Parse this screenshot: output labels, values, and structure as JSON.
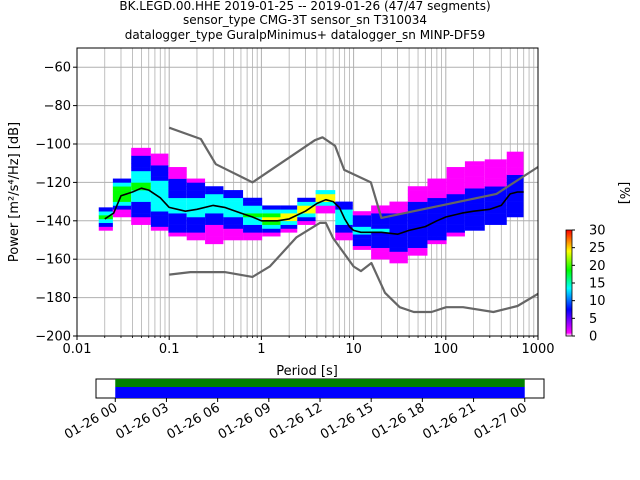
{
  "title_lines": [
    "BK.LEGD.00.HHE   2019-01-25 -- 2019-01-26  (47/47 segments)",
    "sensor_type CMG-3T sensor_sn T310034",
    "datalogger_type GuralpMinimus+ datalogger_sn MINP-DF59"
  ],
  "colors": {
    "background": "#ffffff",
    "grid": "#b0b0b0",
    "model_line": "#666666",
    "mode_line": "#000000",
    "coverage_green": "#008000",
    "coverage_blue": "#0000ff"
  },
  "chart_data": {
    "type": "heatmap",
    "title": "BK.LEGD.00.HHE   2019-01-25 -- 2019-01-26  (47/47 segments)",
    "xlabel": "Period [s]",
    "ylabel": "Power [m²/s⁴/Hz] [dB]",
    "xscale": "log",
    "xlim": [
      0.01,
      1000
    ],
    "ylim": [
      -200,
      -50
    ],
    "x_tick_labels": [
      "0.01",
      "0.1",
      "1",
      "10",
      "100",
      "1000"
    ],
    "x_ticks": [
      0.01,
      0.1,
      1,
      10,
      100,
      1000
    ],
    "y_ticks": [
      -200,
      -180,
      -160,
      -140,
      -120,
      -100,
      -80,
      -60
    ],
    "y_tick_labels": [
      "−200",
      "−180",
      "−160",
      "−140",
      "−120",
      "−100",
      "−80",
      "−60"
    ],
    "grid": true,
    "colorbar": {
      "label": "[%]",
      "range": [
        0,
        30
      ],
      "ticks": [
        0,
        5,
        10,
        15,
        20,
        25,
        30
      ],
      "tick_labels": [
        "0",
        "5",
        "10",
        "15",
        "20",
        "25",
        "30"
      ],
      "colormap": [
        "#ff00ff",
        "#0000ff",
        "#00ffff",
        "#00ff00",
        "#ffff00",
        "#ff0000"
      ]
    },
    "series": [
      {
        "name": "",
        "role": "new-high-noise-model",
        "x": [
          0.1,
          0.22,
          0.32,
          0.8,
          3.8,
          4.6,
          6.3,
          7.9,
          15.4,
          20,
          354.8,
          1000
        ],
        "y": [
          -91.5,
          -97.4,
          -110.5,
          -120,
          -98,
          -96.5,
          -101,
          -113.5,
          -120,
          -138.5,
          -126,
          -112
        ]
      },
      {
        "name": "",
        "role": "new-low-noise-model",
        "x": [
          0.1,
          0.17,
          0.4,
          0.8,
          1.24,
          2.4,
          4.3,
          5,
          6,
          10,
          12,
          15.6,
          21.9,
          31.6,
          45,
          70,
          101,
          154,
          328,
          600,
          1000
        ],
        "y": [
          -168,
          -166.7,
          -166.7,
          -169.2,
          -163.7,
          -148.6,
          -141.1,
          -141.1,
          -149,
          -163.8,
          -166.2,
          -162,
          -177.5,
          -185,
          -187.5,
          -187.5,
          -185,
          -185,
          -187.5,
          -184.4,
          -178
        ]
      },
      {
        "name": "",
        "role": "mode",
        "x": [
          0.02,
          0.025,
          0.03,
          0.04,
          0.05,
          0.06,
          0.08,
          0.1,
          0.15,
          0.2,
          0.3,
          0.4,
          0.6,
          0.8,
          1,
          1.5,
          2,
          3,
          4,
          5,
          6,
          7,
          8,
          9,
          10,
          12,
          15,
          20,
          30,
          40,
          60,
          80,
          100,
          150,
          200,
          300,
          400,
          500,
          600,
          700
        ],
        "y": [
          -139,
          -136,
          -127,
          -125,
          -123,
          -124,
          -128,
          -133,
          -135,
          -134,
          -132,
          -133,
          -136,
          -138,
          -140,
          -140,
          -139,
          -135,
          -131,
          -129,
          -130,
          -133,
          -139,
          -143,
          -145,
          -146,
          -146,
          -146,
          -147,
          -145,
          -143,
          -140,
          -138,
          -136,
          -135,
          -134,
          -132,
          -126,
          -125,
          -125
        ]
      }
    ],
    "heatmap_cells": [
      {
        "x": 0.02,
        "y_low": -145,
        "y_high": -134,
        "peak": -139,
        "pct": 18
      },
      {
        "x": 0.03,
        "y_low": -138,
        "y_high": -118,
        "peak": -127,
        "pct": 22
      },
      {
        "x": 0.05,
        "y_low": -142,
        "y_high": -102,
        "peak": -123,
        "pct": 16
      },
      {
        "x": 0.08,
        "y_low": -145,
        "y_high": -105,
        "peak": -128,
        "pct": 14
      },
      {
        "x": 0.12,
        "y_low": -148,
        "y_high": -112,
        "peak": -133,
        "pct": 12
      },
      {
        "x": 0.2,
        "y_low": -150,
        "y_high": -118,
        "peak": -134,
        "pct": 12
      },
      {
        "x": 0.3,
        "y_low": -152,
        "y_high": -122,
        "peak": -132,
        "pct": 14
      },
      {
        "x": 0.5,
        "y_low": -150,
        "y_high": -124,
        "peak": -134,
        "pct": 14
      },
      {
        "x": 0.8,
        "y_low": -150,
        "y_high": -128,
        "peak": -138,
        "pct": 16
      },
      {
        "x": 1.3,
        "y_low": -148,
        "y_high": -132,
        "peak": -140,
        "pct": 24
      },
      {
        "x": 2,
        "y_low": -146,
        "y_high": -132,
        "peak": -139,
        "pct": 26
      },
      {
        "x": 3,
        "y_low": -142,
        "y_high": -128,
        "peak": -135,
        "pct": 26
      },
      {
        "x": 5,
        "y_low": -136,
        "y_high": -125,
        "peak": -129,
        "pct": 28
      },
      {
        "x": 8,
        "y_low": -150,
        "y_high": -130,
        "peak": -139,
        "pct": 14
      },
      {
        "x": 12,
        "y_low": -155,
        "y_high": -135,
        "peak": -146,
        "pct": 12
      },
      {
        "x": 20,
        "y_low": -160,
        "y_high": -132,
        "peak": -146,
        "pct": 10
      },
      {
        "x": 30,
        "y_low": -162,
        "y_high": -130,
        "peak": -147,
        "pct": 9
      },
      {
        "x": 50,
        "y_low": -158,
        "y_high": -122,
        "peak": -143,
        "pct": 8
      },
      {
        "x": 80,
        "y_low": -152,
        "y_high": -118,
        "peak": -140,
        "pct": 8
      },
      {
        "x": 130,
        "y_low": -148,
        "y_high": -112,
        "peak": -137,
        "pct": 7
      },
      {
        "x": 200,
        "y_low": -145,
        "y_high": -110,
        "peak": -135,
        "pct": 7
      },
      {
        "x": 350,
        "y_low": -142,
        "y_high": -108,
        "peak": -133,
        "pct": 7
      },
      {
        "x": 600,
        "y_low": -138,
        "y_high": -104,
        "peak": -128,
        "pct": 8
      }
    ]
  },
  "timeline": {
    "tick_labels": [
      "01-26 00",
      "01-26 03",
      "01-26 06",
      "01-26 09",
      "01-26 12",
      "01-26 15",
      "01-26 18",
      "01-26 21",
      "01-27 00"
    ],
    "coverage_start_fraction": 0.043,
    "coverage_end_fraction": 0.957
  }
}
